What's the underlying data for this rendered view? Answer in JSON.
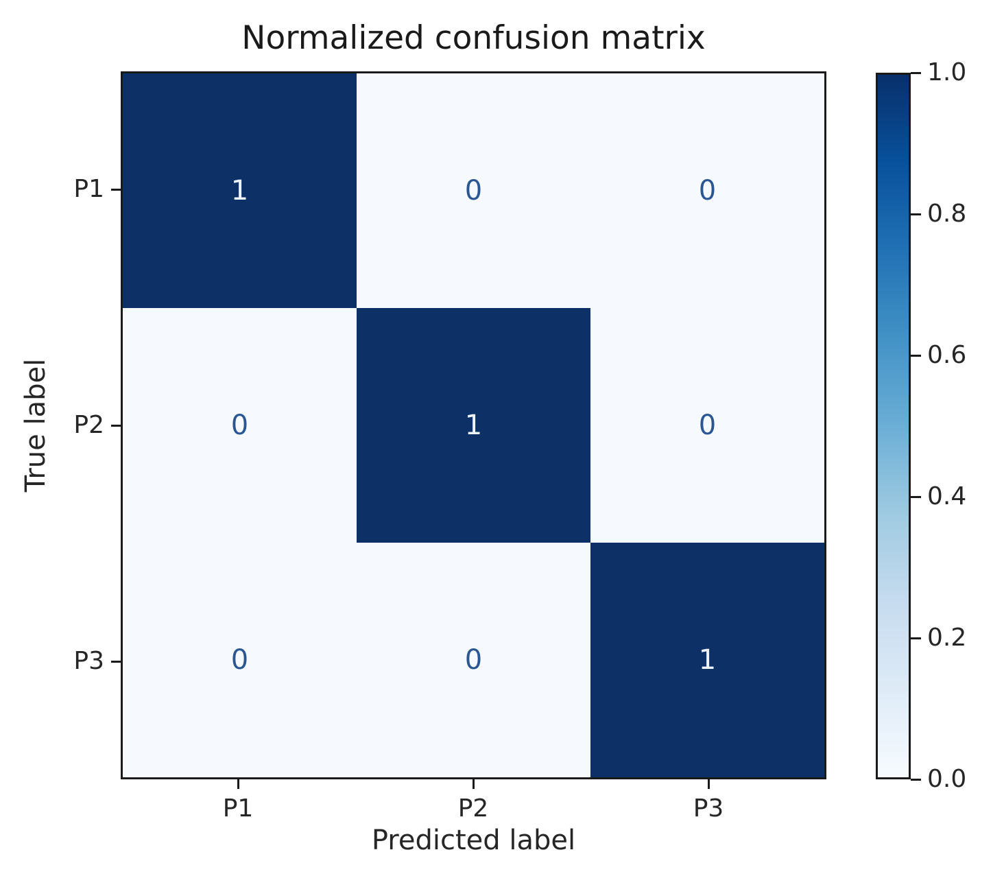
{
  "figure": {
    "title": "Normalized confusion matrix"
  },
  "chart_data": {
    "type": "heatmap",
    "title": "Normalized confusion matrix",
    "xlabel": "Predicted label",
    "ylabel": "True label",
    "x_ticklabels": [
      "P1",
      "P2",
      "P3"
    ],
    "y_ticklabels": [
      "P1",
      "P2",
      "P3"
    ],
    "matrix": [
      [
        1,
        0,
        0
      ],
      [
        0,
        1,
        0
      ],
      [
        0,
        0,
        1
      ]
    ],
    "value_range": [
      0,
      1
    ],
    "colorbar": {
      "tick_labels": [
        "1.0",
        "0.8",
        "0.6",
        "0.4",
        "0.2",
        "0.0"
      ],
      "cmap_name": "Blues",
      "gradient_top_to_bottom": [
        "#08306b",
        "#08519c",
        "#2171b5",
        "#4292c6",
        "#6baed6",
        "#9ecae1",
        "#c6dbef",
        "#deebf7",
        "#f7fbff"
      ]
    },
    "colors": {
      "cell_high": "#0d3167",
      "cell_low": "#f6f9fe",
      "text_on_high": "#eef3fa",
      "text_on_low": "#2a5794",
      "axis": "#1a1a1a",
      "label_text": "#262626"
    }
  }
}
